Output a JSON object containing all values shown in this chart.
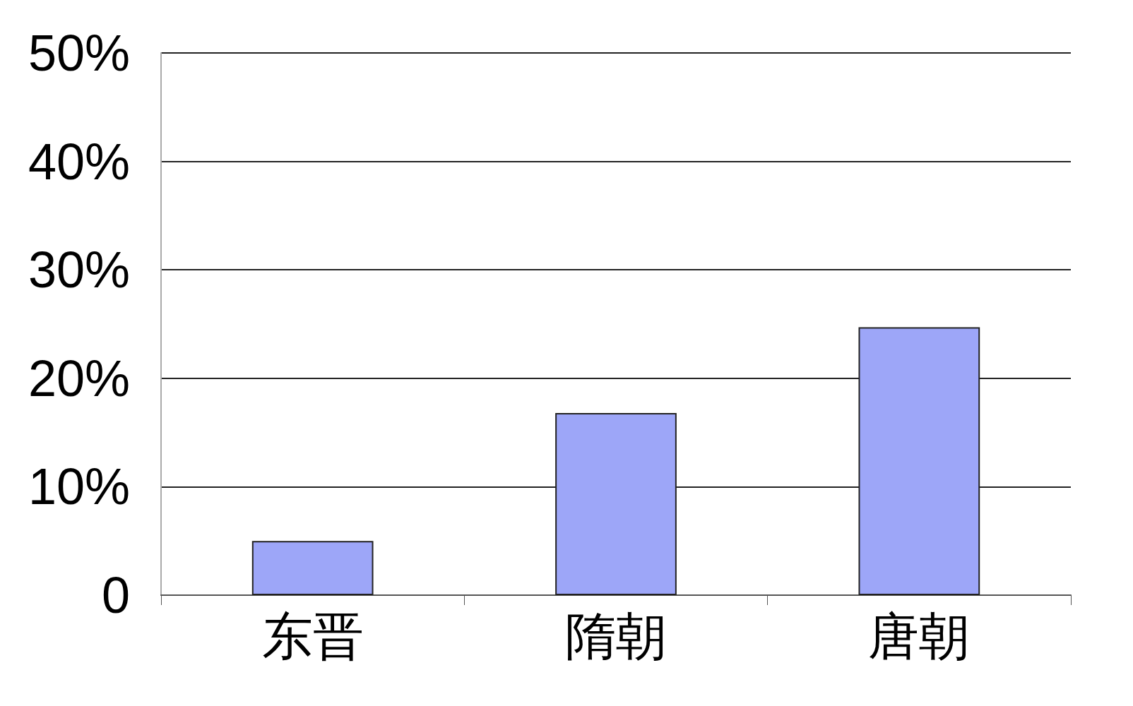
{
  "chart_data": {
    "type": "bar",
    "categories": [
      "东晋",
      "隋朝",
      "唐朝"
    ],
    "values": [
      5.0,
      16.8,
      24.7
    ],
    "color": "#9da6f8",
    "ylim": [
      0,
      50
    ],
    "yticks": [
      0,
      {
        "value": 10,
        "label": "10%"
      },
      {
        "value": 20,
        "label": "20%"
      },
      {
        "value": 30,
        "label": "30%"
      },
      {
        "value": 40,
        "label": "40%"
      },
      {
        "value": 50,
        "label": "50%"
      }
    ],
    "grid": "y"
  }
}
